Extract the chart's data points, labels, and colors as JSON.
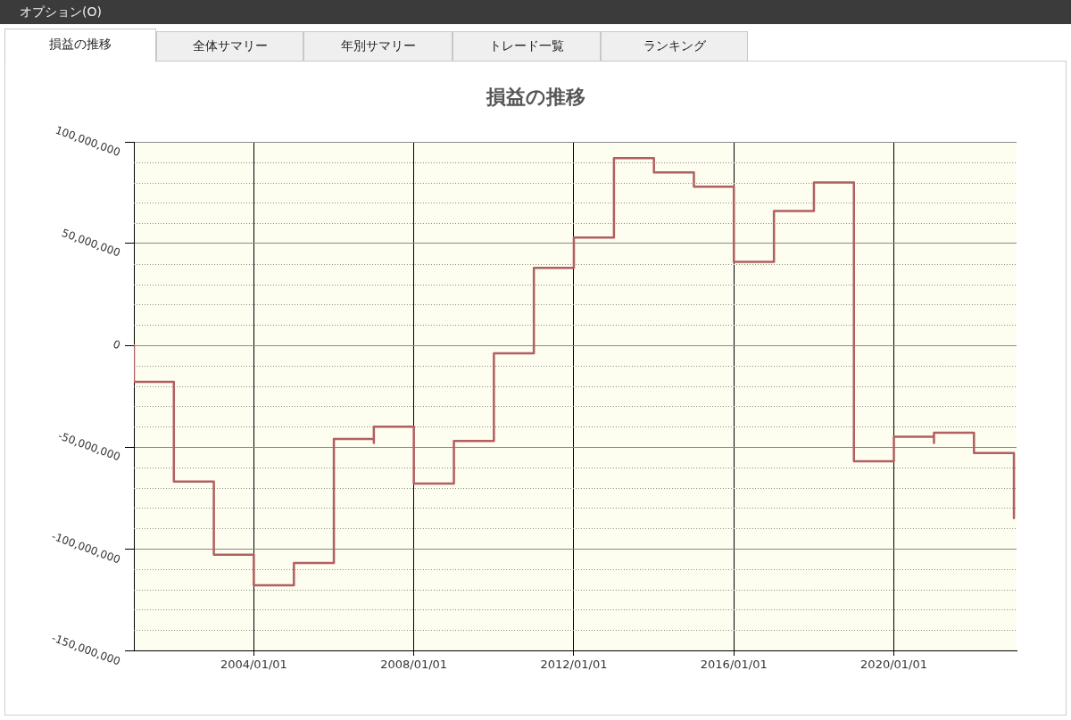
{
  "chart_data": {
    "type": "step",
    "title": "損益の推移",
    "annotations": [
      "オプション(O)",
      "損益の推移",
      "全体サマリー",
      "年別サマリー",
      "トレード一覧",
      "ランキング"
    ],
    "x": [
      "2001",
      "2001",
      "2002",
      "2003",
      "2004",
      "2005",
      "2006",
      "2007",
      "2007",
      "2008",
      "2009",
      "2010",
      "2011",
      "2012",
      "2013",
      "2014",
      "2015",
      "2016",
      "2017",
      "2018",
      "2019",
      "2020",
      "2021",
      "2021",
      "2022",
      "2023"
    ],
    "series": [
      {
        "color": "#b25f5f",
        "values": [
          0,
          -18000000,
          -67000000,
          -103000000,
          -118000000,
          -107000000,
          -46000000,
          -48000000,
          -40000000,
          -68000000,
          -47000000,
          -4000000,
          38000000,
          53000000,
          92000000,
          85000000,
          78000000,
          41000000,
          66000000,
          80000000,
          -57000000,
          -45000000,
          -48000000,
          -43000000,
          -53000000,
          -85000000
        ]
      }
    ],
    "xlim": [
      "2001",
      "2023-01-25"
    ],
    "xticks": [
      {
        "value": "2004-01-01",
        "label": "2004/01/01"
      },
      {
        "value": "2008-01-01",
        "label": "2008/01/01"
      },
      {
        "value": "2012-01-01",
        "label": "2012/01/01"
      },
      {
        "value": "2016-01-01",
        "label": "2016/01/01"
      },
      {
        "value": "2020-01-01",
        "label": "2020/01/01"
      }
    ],
    "ylim": [
      -150000000,
      100000000
    ],
    "yticks": [
      {
        "value": -150000000,
        "label": "-150,000,000"
      },
      {
        "value": -140000000,
        "label": null
      },
      {
        "value": -130000000,
        "label": null
      },
      {
        "value": -120000000,
        "label": null
      },
      {
        "value": -110000000,
        "label": null
      },
      {
        "value": -100000000,
        "label": "-100,000,000"
      },
      {
        "value": -90000000,
        "label": null
      },
      {
        "value": -80000000,
        "label": null
      },
      {
        "value": -70000000,
        "label": null
      },
      {
        "value": -60000000,
        "label": null
      },
      {
        "value": -50000000,
        "label": "-50,000,000"
      },
      {
        "value": -40000000,
        "label": null
      },
      {
        "value": -30000000,
        "label": null
      },
      {
        "value": -20000000,
        "label": null
      },
      {
        "value": -10000000,
        "label": null
      },
      0,
      {
        "value": 10000000,
        "label": null
      },
      {
        "value": 20000000,
        "label": null
      },
      {
        "value": 30000000,
        "label": null
      },
      {
        "value": 40000000,
        "label": null
      },
      {
        "value": 50000000,
        "label": "50,000,000"
      },
      {
        "value": 60000000,
        "label": null
      },
      {
        "value": 70000000,
        "label": null
      },
      {
        "value": 80000000,
        "label": null
      },
      {
        "value": 90000000,
        "label": null
      },
      {
        "value": 100000000,
        "label": "100,000,000"
      }
    ],
    "grid": true
  }
}
